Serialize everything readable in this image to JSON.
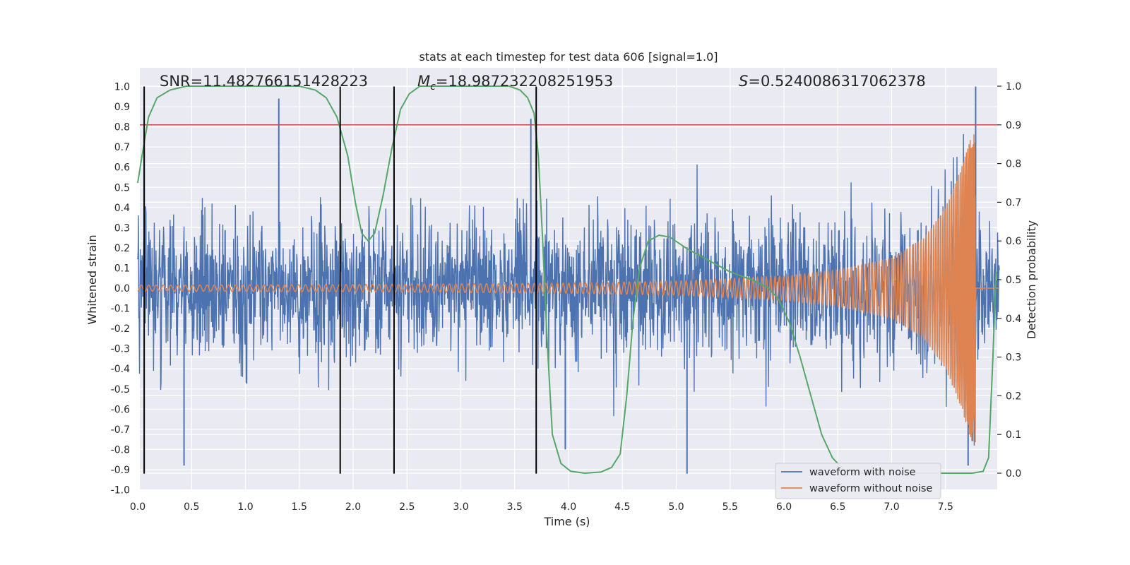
{
  "chart_data": {
    "type": "line",
    "title": "stats at each timestep for test data 606 [signal=1.0]",
    "xlabel": "Time (s)",
    "ylabel": "Whitened strain",
    "ylabel_right": "Detection probability",
    "xlim": [
      0.0,
      8.0
    ],
    "ylim": [
      -1.05,
      1.05
    ],
    "ylim_right": [
      -0.05,
      1.05
    ],
    "xticks": [
      "0.0",
      "0.5",
      "1.0",
      "1.5",
      "2.0",
      "2.5",
      "3.0",
      "3.5",
      "4.0",
      "4.5",
      "5.0",
      "5.5",
      "6.0",
      "6.5",
      "7.0",
      "7.5"
    ],
    "xtick_values": [
      0.0,
      0.5,
      1.0,
      1.5,
      2.0,
      2.5,
      3.0,
      3.5,
      4.0,
      4.5,
      5.0,
      5.5,
      6.0,
      6.5,
      7.0,
      7.5
    ],
    "yticks": [
      "1.0",
      "0.9",
      "0.8",
      "0.7",
      "0.6",
      "0.5",
      "0.4",
      "0.3",
      "0.2",
      "0.1",
      "0.0",
      "-0.1",
      "-0.2",
      "-0.3",
      "-0.4",
      "-0.5",
      "-0.6",
      "-0.7",
      "-0.8",
      "-0.9",
      "-1.0"
    ],
    "ytick_values": [
      1.0,
      0.9,
      0.8,
      0.7,
      0.6,
      0.5,
      0.4,
      0.3,
      0.2,
      0.1,
      0.0,
      -0.1,
      -0.2,
      -0.3,
      -0.4,
      -0.5,
      -0.6,
      -0.7,
      -0.8,
      -0.9,
      -1.0
    ],
    "yticks_right": [
      "1.0",
      "0.9",
      "0.8",
      "0.7",
      "0.6",
      "0.5",
      "0.4",
      "0.3",
      "0.2",
      "0.1",
      "0.0"
    ],
    "ytick_values_right": [
      1.0,
      0.9,
      0.8,
      0.7,
      0.6,
      0.5,
      0.4,
      0.3,
      0.2,
      0.1,
      0.0
    ],
    "annotations": {
      "snr": "SNR=11.482766151428223",
      "mc_symbol": "M",
      "mc_sub": "c",
      "mc_value": "=18.987232208251953",
      "s_symbol": "S",
      "s_value": "=0.5240086317062378"
    },
    "threshold_line": {
      "value": 0.9,
      "axis": "right",
      "color": "#c44e52"
    },
    "vertical_lines": [
      {
        "x": 0.06,
        "y_from": -0.92,
        "y_to": 1.0
      },
      {
        "x": 1.88,
        "y_from": -0.92,
        "y_to": 1.0
      },
      {
        "x": 2.38,
        "y_from": -0.92,
        "y_to": 1.0
      },
      {
        "x": 3.7,
        "y_from": -0.92,
        "y_to": 1.0
      }
    ],
    "series": [
      {
        "name": "waveform with noise",
        "color": "#4c72b0",
        "description": "whitened noisy strain, dense noise envelope about +/-0.35 with spikes; notable peaks",
        "peaks": [
          {
            "x": 0.06,
            "y": 0.76
          },
          {
            "x": 1.31,
            "y": 0.94
          },
          {
            "x": 3.65,
            "y": 0.84
          },
          {
            "x": 0.43,
            "y": -0.88
          },
          {
            "x": 3.97,
            "y": -0.8
          },
          {
            "x": 5.1,
            "y": -0.92
          },
          {
            "x": 7.71,
            "y": -0.88
          },
          {
            "x": 7.78,
            "y": 1.0
          }
        ]
      },
      {
        "name": "waveform without noise",
        "color": "#dd8452",
        "description": "chirp waveform, amplitude growing with time, merging near t=7.78 s",
        "merger_time": 7.78,
        "envelope": [
          {
            "x": 0.0,
            "amp": 0.015
          },
          {
            "x": 2.0,
            "amp": 0.018
          },
          {
            "x": 4.0,
            "amp": 0.025
          },
          {
            "x": 5.0,
            "amp": 0.035
          },
          {
            "x": 6.0,
            "amp": 0.06
          },
          {
            "x": 6.5,
            "amp": 0.09
          },
          {
            "x": 7.0,
            "amp": 0.15
          },
          {
            "x": 7.3,
            "amp": 0.25
          },
          {
            "x": 7.5,
            "amp": 0.4
          },
          {
            "x": 7.65,
            "amp": 0.6
          },
          {
            "x": 7.75,
            "amp": 0.77
          }
        ]
      },
      {
        "name": "detection probability",
        "color": "#55a868",
        "axis": "right",
        "points": [
          [
            0.0,
            0.75
          ],
          [
            0.04,
            0.82
          ],
          [
            0.1,
            0.92
          ],
          [
            0.18,
            0.97
          ],
          [
            0.3,
            0.99
          ],
          [
            0.45,
            1.0
          ],
          [
            1.0,
            1.0
          ],
          [
            1.5,
            1.0
          ],
          [
            1.65,
            0.99
          ],
          [
            1.75,
            0.97
          ],
          [
            1.85,
            0.92
          ],
          [
            1.95,
            0.82
          ],
          [
            2.02,
            0.7
          ],
          [
            2.08,
            0.62
          ],
          [
            2.14,
            0.6
          ],
          [
            2.2,
            0.62
          ],
          [
            2.28,
            0.72
          ],
          [
            2.36,
            0.84
          ],
          [
            2.44,
            0.94
          ],
          [
            2.52,
            0.98
          ],
          [
            2.62,
            1.0
          ],
          [
            3.0,
            1.0
          ],
          [
            3.45,
            1.0
          ],
          [
            3.55,
            0.99
          ],
          [
            3.62,
            0.97
          ],
          [
            3.68,
            0.93
          ],
          [
            3.72,
            0.82
          ],
          [
            3.76,
            0.6
          ],
          [
            3.8,
            0.35
          ],
          [
            3.85,
            0.1
          ],
          [
            3.93,
            0.025
          ],
          [
            4.02,
            0.005
          ],
          [
            4.15,
            0.0
          ],
          [
            4.3,
            0.003
          ],
          [
            4.4,
            0.015
          ],
          [
            4.48,
            0.05
          ],
          [
            4.54,
            0.2
          ],
          [
            4.6,
            0.4
          ],
          [
            4.66,
            0.53
          ],
          [
            4.74,
            0.6
          ],
          [
            4.84,
            0.615
          ],
          [
            4.94,
            0.61
          ],
          [
            5.1,
            0.58
          ],
          [
            5.3,
            0.55
          ],
          [
            5.5,
            0.52
          ],
          [
            5.7,
            0.5
          ],
          [
            5.85,
            0.48
          ],
          [
            5.95,
            0.45
          ],
          [
            6.05,
            0.39
          ],
          [
            6.15,
            0.3
          ],
          [
            6.25,
            0.2
          ],
          [
            6.35,
            0.1
          ],
          [
            6.45,
            0.04
          ],
          [
            6.55,
            0.01
          ],
          [
            6.7,
            0.0
          ],
          [
            7.4,
            0.0
          ],
          [
            7.75,
            0.0
          ],
          [
            7.85,
            0.005
          ],
          [
            7.9,
            0.04
          ],
          [
            7.94,
            0.3
          ],
          [
            7.97,
            0.52
          ]
        ]
      }
    ],
    "legend": {
      "position": "lower-right",
      "entries": [
        {
          "label": "waveform with noise",
          "color": "#4c72b0"
        },
        {
          "label": "waveform without noise",
          "color": "#dd8452"
        }
      ]
    },
    "style": {
      "plot_background": "#eaeaf2",
      "grid": true
    }
  }
}
